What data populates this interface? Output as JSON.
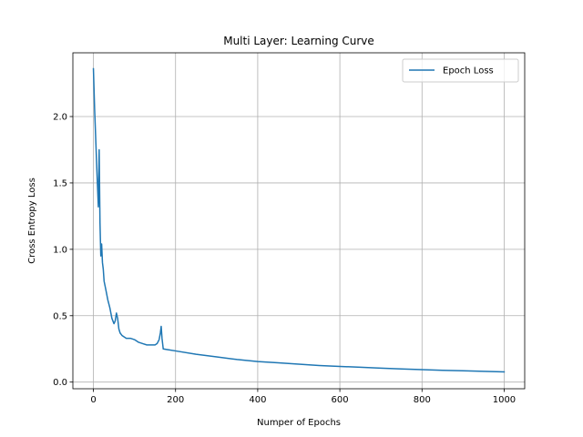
{
  "chart_data": {
    "type": "line",
    "title": "Multi Layer: Learning Curve",
    "xlabel": "Numper of Epochs",
    "ylabel": "Cross Entropy Loss",
    "xlim": [
      -50,
      1050
    ],
    "ylim": [
      -0.05,
      2.48
    ],
    "xticks": [
      0,
      200,
      400,
      600,
      800,
      1000
    ],
    "yticks": [
      0.0,
      0.5,
      1.0,
      1.5,
      2.0
    ],
    "xtick_labels": [
      "0",
      "200",
      "400",
      "600",
      "800",
      "1000"
    ],
    "ytick_labels": [
      "0.0",
      "0.5",
      "1.0",
      "1.5",
      "2.0"
    ],
    "grid": true,
    "legend_position": "top-right",
    "series": [
      {
        "name": "Epoch Loss",
        "color": "#1f77b4",
        "x": [
          0,
          3,
          6,
          9,
          12,
          14,
          16,
          18,
          20,
          22,
          24,
          26,
          30,
          35,
          40,
          45,
          50,
          53,
          56,
          59,
          62,
          65,
          70,
          80,
          90,
          100,
          110,
          120,
          130,
          140,
          150,
          155,
          160,
          163,
          165,
          167,
          170,
          180,
          200,
          250,
          300,
          350,
          400,
          450,
          500,
          550,
          600,
          650,
          700,
          750,
          800,
          850,
          900,
          950,
          1000
        ],
        "y": [
          2.36,
          2.05,
          1.8,
          1.55,
          1.32,
          1.75,
          1.2,
          0.95,
          1.04,
          0.9,
          0.85,
          0.76,
          0.7,
          0.62,
          0.56,
          0.48,
          0.44,
          0.46,
          0.52,
          0.48,
          0.4,
          0.37,
          0.35,
          0.33,
          0.33,
          0.32,
          0.3,
          0.29,
          0.28,
          0.28,
          0.28,
          0.29,
          0.32,
          0.37,
          0.42,
          0.33,
          0.25,
          0.245,
          0.235,
          0.21,
          0.19,
          0.17,
          0.155,
          0.145,
          0.135,
          0.125,
          0.118,
          0.112,
          0.105,
          0.099,
          0.094,
          0.089,
          0.085,
          0.081,
          0.077
        ]
      }
    ]
  }
}
